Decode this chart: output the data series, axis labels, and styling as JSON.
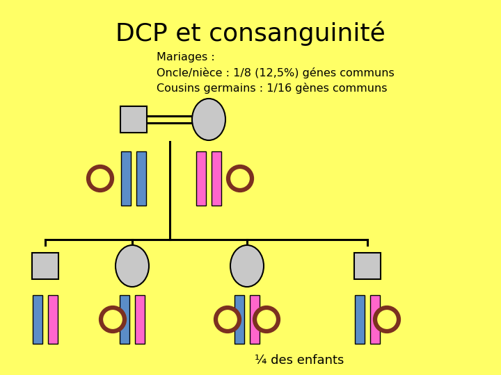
{
  "bg_color": "#FFFF66",
  "title": "DCP et consanguinité",
  "title_fontsize": 26,
  "subtitle_lines": [
    "Mariages :",
    "Oncle/nièce : 1/8 (12,5%) génes communs",
    "Cousins germains : 1/16 gènes communs"
  ],
  "subtitle_fontsize": 11.5,
  "footer": "¼ des enfants",
  "footer_fontsize": 13,
  "blue": "#5B8DC8",
  "pink": "#FF66CC",
  "gray": "#C8C8C8",
  "ring_color": "#7B3020",
  "line_color": "#000000"
}
